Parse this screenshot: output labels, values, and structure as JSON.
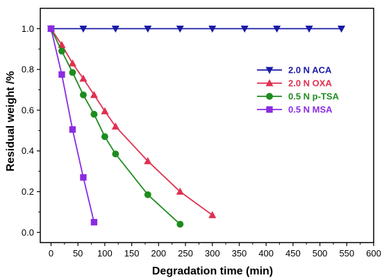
{
  "chart_data": {
    "type": "line",
    "title": "",
    "xlabel": "Degradation time (min)",
    "ylabel": "Residual weight /%",
    "xlim": [
      -20,
      600
    ],
    "ylim": [
      -0.05,
      1.1
    ],
    "xticks": [
      0,
      50,
      100,
      150,
      200,
      250,
      300,
      350,
      400,
      450,
      500,
      550,
      600
    ],
    "yticks": [
      0.0,
      0.2,
      0.4,
      0.6,
      0.8,
      1.0
    ],
    "ytick_labels": [
      "0.0",
      "0.2",
      "0.4",
      "0.6",
      "0.8",
      "1.0"
    ],
    "grid": false,
    "legend_position": "upper-right",
    "series": [
      {
        "name": "2.0 N ACA",
        "color": "#1a1aa6",
        "marker": "triangle-down",
        "x": [
          0,
          60,
          120,
          180,
          240,
          300,
          360,
          420,
          480,
          540
        ],
        "y": [
          1.0,
          1.0,
          1.0,
          1.0,
          1.0,
          1.0,
          1.0,
          1.0,
          1.0,
          1.0
        ]
      },
      {
        "name": "2.0 N OXA",
        "color": "#e0304f",
        "marker": "triangle-up",
        "x": [
          0,
          20,
          40,
          60,
          80,
          100,
          120,
          180,
          240,
          300
        ],
        "y": [
          1.0,
          0.92,
          0.83,
          0.755,
          0.675,
          0.595,
          0.52,
          0.35,
          0.2,
          0.085
        ]
      },
      {
        "name": "0.5 N p-TSA",
        "color": "#1e8c1e",
        "marker": "circle",
        "x": [
          0,
          20,
          40,
          60,
          80,
          100,
          120,
          180,
          240
        ],
        "y": [
          1.0,
          0.89,
          0.785,
          0.675,
          0.58,
          0.47,
          0.385,
          0.185,
          0.04
        ]
      },
      {
        "name": "0.5 N MSA",
        "color": "#8a2be2",
        "marker": "square",
        "x": [
          0,
          20,
          40,
          60,
          80
        ],
        "y": [
          1.0,
          0.775,
          0.505,
          0.27,
          0.05
        ]
      }
    ]
  }
}
